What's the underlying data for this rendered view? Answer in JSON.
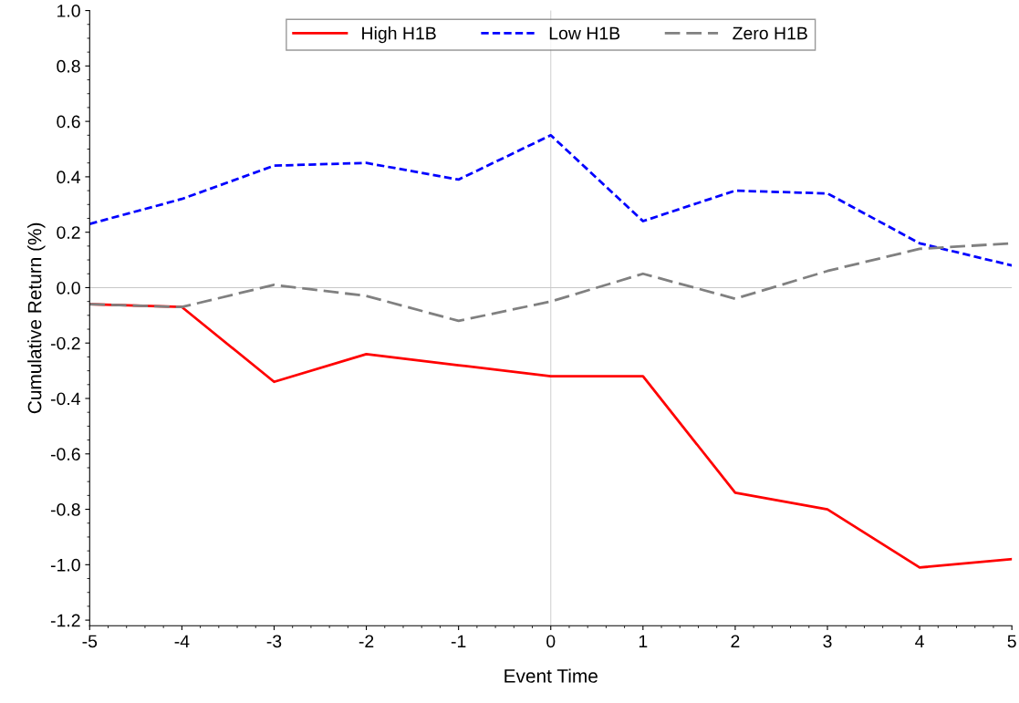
{
  "chart_data": {
    "type": "line",
    "xlabel": "Event Time",
    "ylabel": "Cumulative Return (%)",
    "x": [
      -5,
      -4,
      -3,
      -2,
      -1,
      0,
      1,
      2,
      3,
      4,
      5
    ],
    "series": [
      {
        "name": "High H1B",
        "color": "#ff0000",
        "line_style": "solid",
        "values": [
          -0.06,
          -0.07,
          -0.34,
          -0.24,
          -0.28,
          -0.32,
          -0.32,
          -0.74,
          -0.8,
          -1.01,
          -0.98
        ]
      },
      {
        "name": "Low H1B",
        "color": "#0000ff",
        "line_style": "dotted",
        "values": [
          0.23,
          0.32,
          0.44,
          0.45,
          0.39,
          0.55,
          0.24,
          0.35,
          0.34,
          0.16,
          0.08
        ]
      },
      {
        "name": "Zero H1B",
        "color": "#808080",
        "line_style": "dashed",
        "values": [
          -0.06,
          -0.07,
          0.01,
          -0.03,
          -0.12,
          -0.05,
          0.05,
          -0.04,
          0.06,
          0.14,
          0.16
        ]
      }
    ],
    "xlim": [
      -5,
      5
    ],
    "xticks": [
      -5,
      -4,
      -3,
      -2,
      -1,
      0,
      1,
      2,
      3,
      4,
      5
    ],
    "ylim": [
      -1.22,
      1.0
    ],
    "yticks": [
      {
        "value": -1.2,
        "label": "-1.2"
      },
      {
        "value": -1.0,
        "label": "-1.0"
      },
      {
        "value": -0.8,
        "label": "-0.8"
      },
      {
        "value": -0.6,
        "label": "-0.6"
      },
      {
        "value": -0.4,
        "label": "-0.4"
      },
      {
        "value": -0.2,
        "label": "-0.2"
      },
      {
        "value": 0.0,
        "label": "0.0"
      },
      {
        "value": 0.2,
        "label": "0.2"
      },
      {
        "value": 0.4,
        "label": "0.4"
      },
      {
        "value": 0.6,
        "label": "0.6"
      },
      {
        "value": 0.8,
        "label": "0.8"
      },
      {
        "value": 1.0,
        "label": "1.0"
      }
    ],
    "ref_lines": [
      {
        "axis": "x",
        "value": 0,
        "color": "#d3d3d3"
      },
      {
        "axis": "y",
        "value": 0,
        "color": "#c8c8c8"
      }
    ],
    "grid": false,
    "legend": "top",
    "marker": "none"
  }
}
